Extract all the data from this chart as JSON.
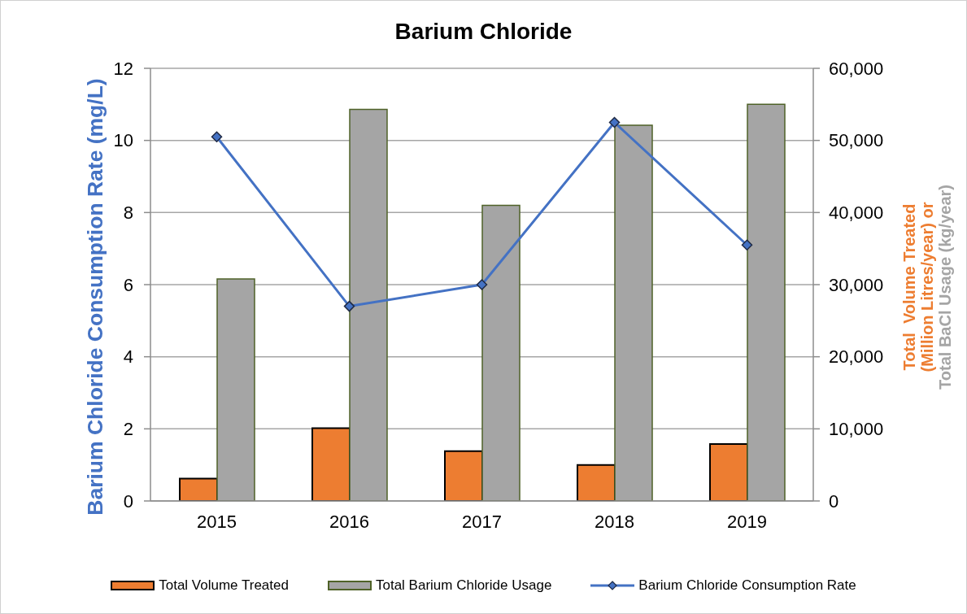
{
  "chart_data": {
    "type": "bar",
    "title": "Barium Chloride",
    "ylabel": "Barium Chloride Consumption Rate (mg/L)",
    "y2label": "Total  Volume Treated\n(Million Litres/year) or\nTotal BaCl Usage (kg/year)",
    "categories": [
      "2015",
      "2016",
      "2017",
      "2018",
      "2019"
    ],
    "series": [
      {
        "name": "Total Volume Treated",
        "axis": "y2",
        "color": "#ed7d31",
        "values": [
          3100,
          10100,
          6900,
          5000,
          7900
        ]
      },
      {
        "name": "Total Barium Chloride Usage",
        "axis": "y2",
        "color": "#a5a5a5",
        "values": [
          30800,
          54300,
          41000,
          52100,
          55000
        ]
      },
      {
        "name": "Barium Chloride Consumption Rate",
        "type": "line",
        "color": "#4472c4",
        "marker": "diamond",
        "values": [
          10.1,
          5.4,
          6.0,
          10.5,
          7.1
        ]
      }
    ],
    "ylim": [
      0,
      12
    ],
    "yticks": [
      0,
      2,
      4,
      6,
      8,
      10,
      12
    ],
    "y2lim": [
      0,
      60000
    ],
    "y2ticks": [
      0,
      {
        "value": 10000,
        "label": "10,000"
      },
      {
        "value": 20000,
        "label": "20,000"
      },
      {
        "value": 30000,
        "label": "30,000"
      },
      {
        "value": 40000,
        "label": "40,000"
      },
      {
        "value": 50000,
        "label": "50,000"
      },
      {
        "value": 60000,
        "label": "60,000"
      }
    ],
    "grid": "y",
    "legend": "bottom"
  }
}
